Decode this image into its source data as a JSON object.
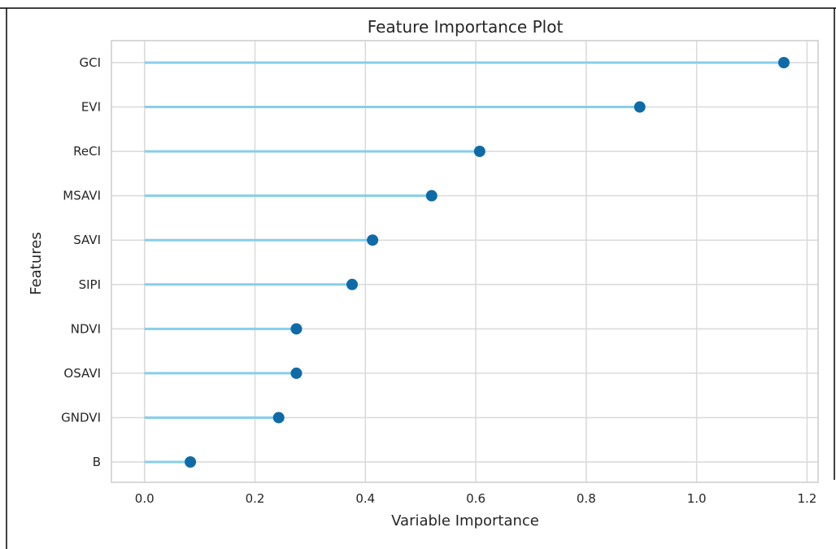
{
  "chart_data": {
    "type": "lollipop",
    "title": "Feature Importance Plot",
    "xlabel": "Variable Importance",
    "ylabel": "Features",
    "xlim": [
      -0.06,
      1.22
    ],
    "xticks": [
      "0.0",
      "0.2",
      "0.4",
      "0.6",
      "0.8",
      "1.0",
      "1.2"
    ],
    "xtick_values": [
      0.0,
      0.2,
      0.4,
      0.6,
      0.8,
      1.0,
      1.2
    ],
    "categories": [
      "GCI",
      "EVI",
      "ReCI",
      "MSAVI",
      "SAVI",
      "SIPI",
      "NDVI",
      "OSAVI",
      "GNDVI",
      "B"
    ],
    "values": [
      1.158,
      0.897,
      0.607,
      0.52,
      0.413,
      0.376,
      0.275,
      0.275,
      0.243,
      0.083
    ],
    "grid": true,
    "colors": {
      "stem": "#87ceeb",
      "marker": "#0e6ba8",
      "grid": "#d9d9d9",
      "spine": "#cccccc",
      "frame": "#000000"
    }
  }
}
